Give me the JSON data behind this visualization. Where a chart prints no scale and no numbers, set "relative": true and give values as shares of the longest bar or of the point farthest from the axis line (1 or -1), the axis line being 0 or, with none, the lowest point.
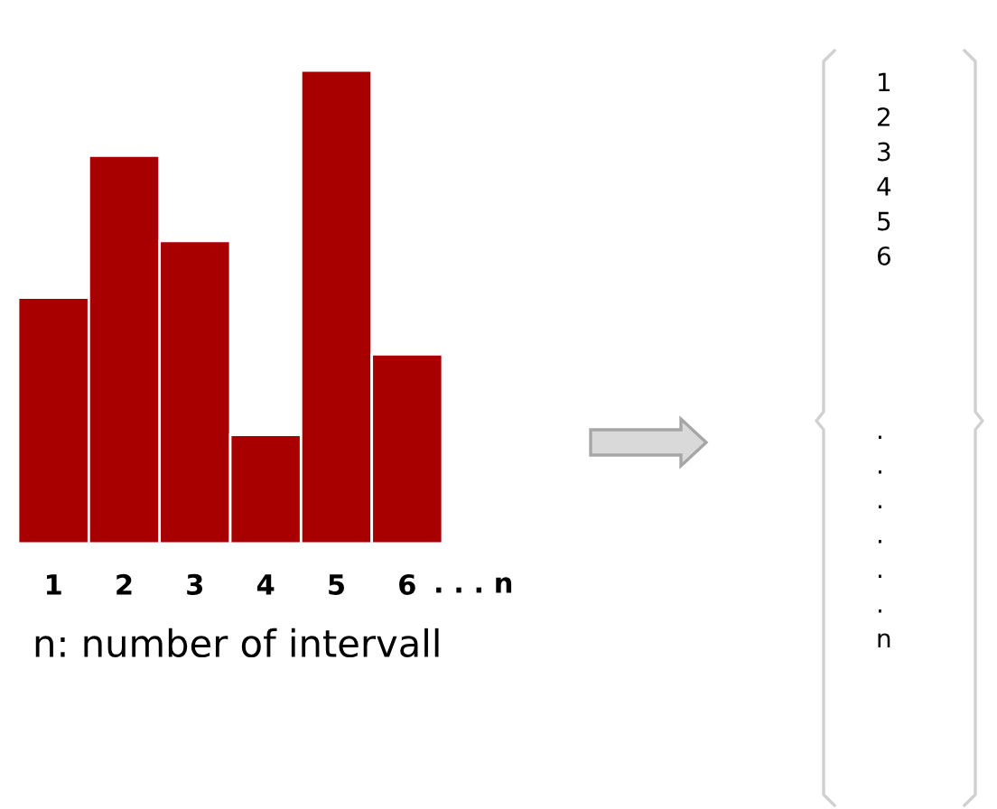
{
  "chart_data": {
    "type": "bar",
    "relative": true,
    "categories": [
      "1",
      "2",
      "3",
      "4",
      "5",
      "6"
    ],
    "values": [
      0.52,
      0.82,
      0.64,
      0.23,
      1,
      0.4
    ],
    "color": "#a80000",
    "annotations": [
      ". . . n",
      "n: number of intervall",
      "1\n2\n3\n4\n5\n6\n\n\n\n\n.\n.\n.\n.\n.\n.\nn"
    ]
  }
}
